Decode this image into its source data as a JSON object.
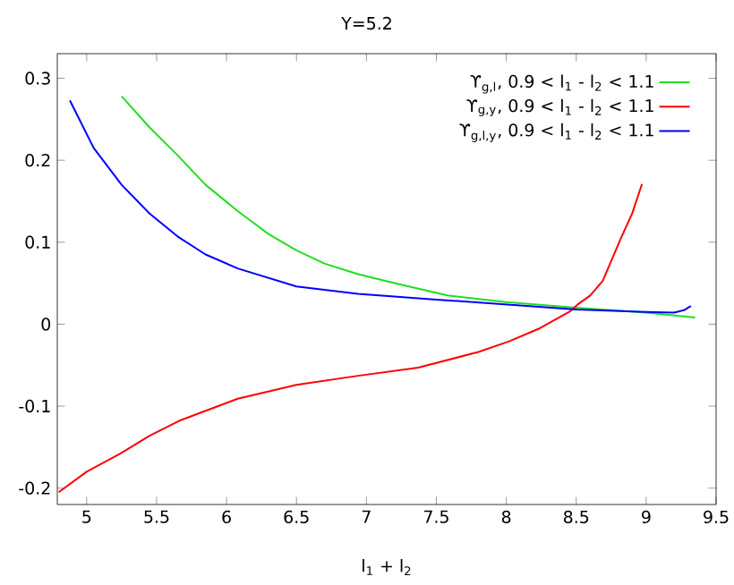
{
  "chart_data": {
    "type": "line",
    "title": "Y=5.2",
    "xlabel": "l$_{1}$ + l$_{2}$",
    "xlim": [
      4.79,
      9.5
    ],
    "ylim": [
      -0.22,
      0.33
    ],
    "xticks": [
      5,
      5.5,
      6,
      6.5,
      7,
      7.5,
      8,
      8.5,
      9,
      9.5
    ],
    "yticks": [
      -0.2,
      -0.1,
      0,
      0.1,
      0.2,
      0.3
    ],
    "legend": "top right",
    "grid": false,
    "marker": "none",
    "line_style": "solid",
    "series": [
      {
        "name": "ϒ$_{g,l}$, 0.9 < l$_{1}$ - l$_{2}$ < 1.1",
        "color": "#22dd22",
        "x": [
          5.25,
          5.45,
          5.65,
          5.85,
          6.08,
          6.3,
          6.5,
          6.7,
          6.94,
          7.2,
          7.58,
          8.0,
          8.5,
          9.0,
          9.35
        ],
        "values": [
          0.278,
          0.24,
          0.206,
          0.17,
          0.138,
          0.11,
          0.09,
          0.074,
          0.061,
          0.05,
          0.035,
          0.027,
          0.02,
          0.014,
          0.008
        ]
      },
      {
        "name": "ϒ$_{g,y}$, 0.9 < l$_{1}$ - l$_{2}$ < 1.1",
        "color": "#ff0000",
        "x": [
          4.8,
          5.0,
          5.24,
          5.45,
          5.66,
          6.08,
          6.5,
          6.94,
          7.37,
          7.8,
          8.02,
          8.24,
          8.45,
          8.51,
          8.6,
          8.69,
          8.82,
          8.9,
          8.97
        ],
        "values": [
          -0.205,
          -0.18,
          -0.158,
          -0.136,
          -0.118,
          -0.091,
          -0.074,
          -0.063,
          -0.053,
          -0.034,
          -0.021,
          -0.005,
          0.015,
          0.024,
          0.035,
          0.053,
          0.105,
          0.135,
          0.171
        ]
      },
      {
        "name": "ϒ$_{g,l,y}$, 0.9 < l$_{1}$ - l$_{2}$ < 1.1",
        "color": "#0000ff",
        "x": [
          4.88,
          5.05,
          5.25,
          5.45,
          5.65,
          5.85,
          6.08,
          6.5,
          6.94,
          7.5,
          8.0,
          8.5,
          9.0,
          9.2,
          9.27,
          9.32
        ],
        "values": [
          0.273,
          0.215,
          0.17,
          0.135,
          0.107,
          0.085,
          0.068,
          0.046,
          0.037,
          0.03,
          0.024,
          0.018,
          0.015,
          0.014,
          0.017,
          0.022
        ]
      }
    ]
  }
}
